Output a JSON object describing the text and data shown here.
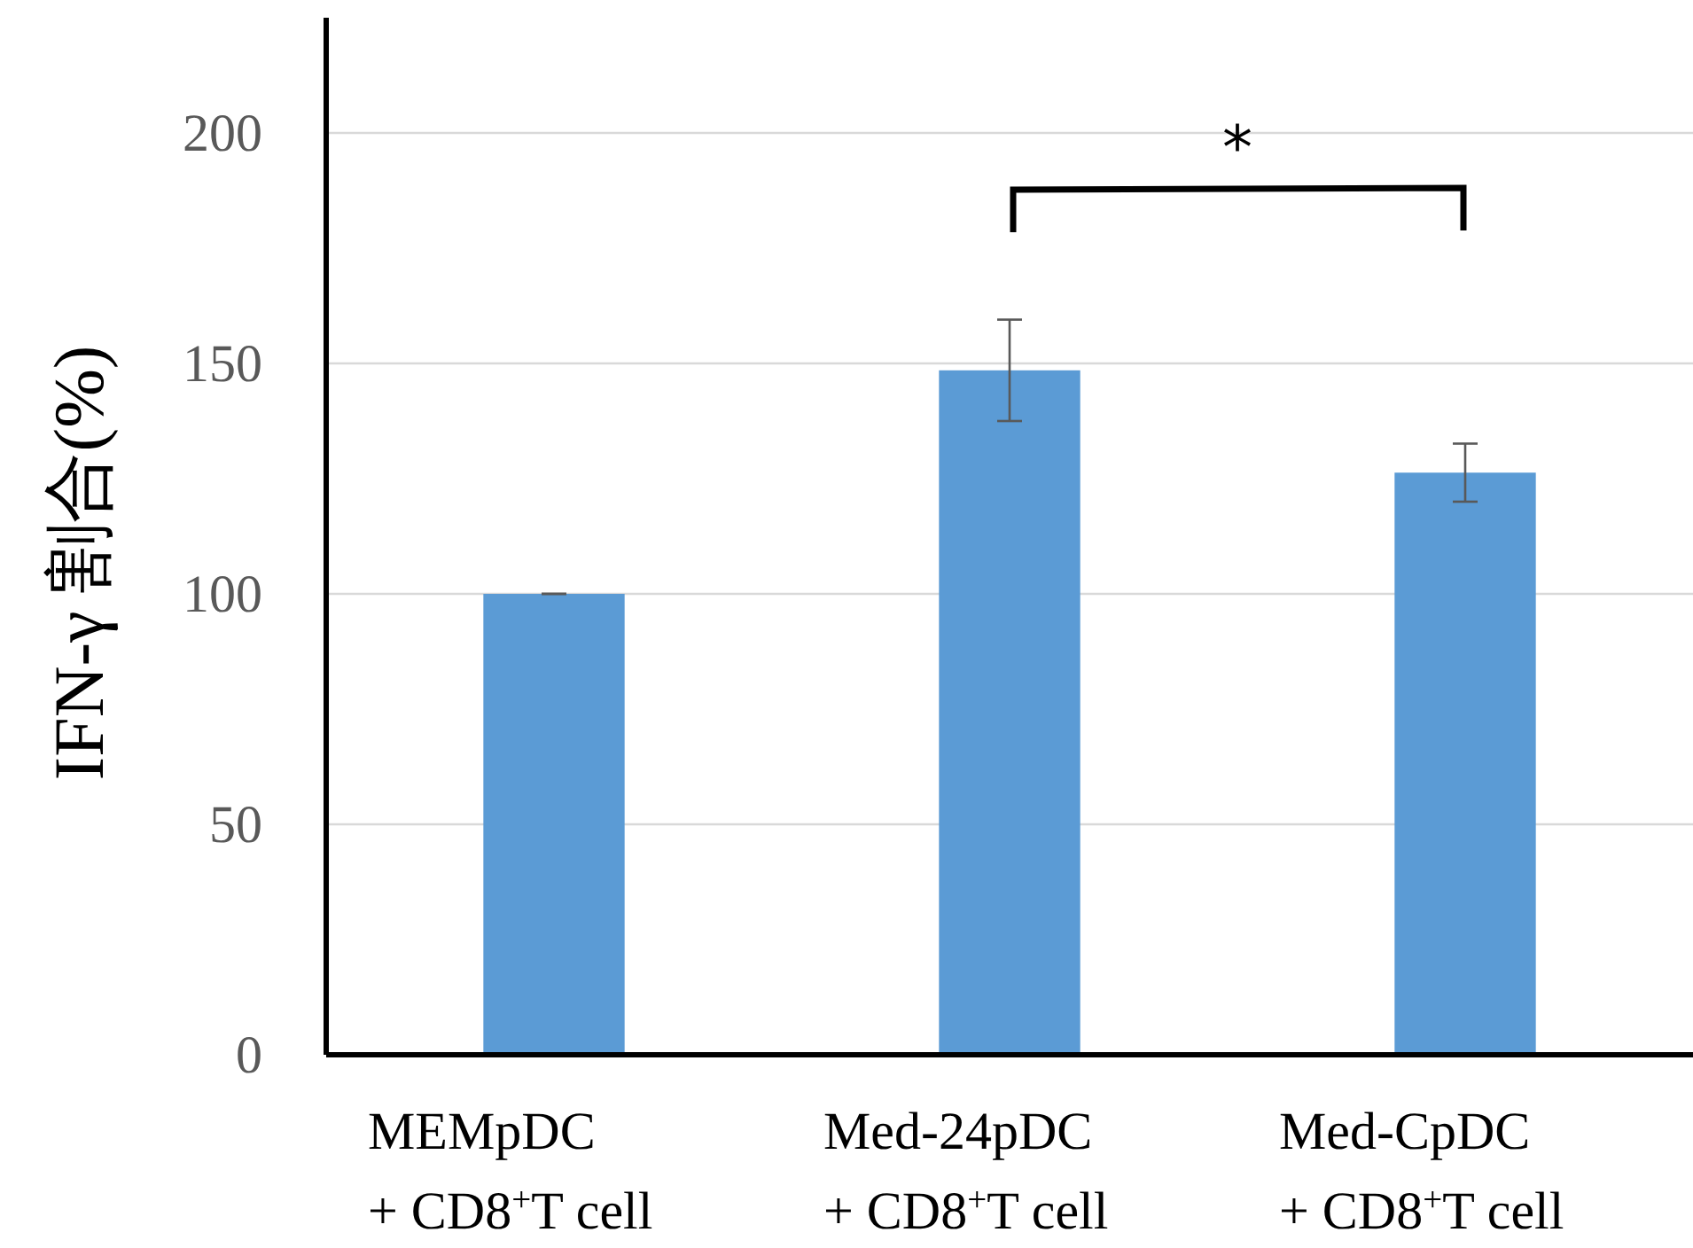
{
  "chart_data": {
    "type": "bar",
    "ylabel": "IFN-γ 割合(%)",
    "categories": [
      "MEMpDC\n+ CD8$^{+}$T cell",
      "Med-24pDC\n+ CD8$^{+}$T cell",
      "Med-CpDC\n+ CD8$^{+}$T cell"
    ],
    "values": [
      100,
      148.5,
      126.3
    ],
    "errors": [
      0,
      11,
      6.3
    ],
    "color": "#5b9bd5",
    "ylim": [
      0,
      225
    ],
    "yticks": [
      0,
      50,
      100,
      150,
      200
    ],
    "grid": "y",
    "annotations": [
      "*"
    ]
  }
}
